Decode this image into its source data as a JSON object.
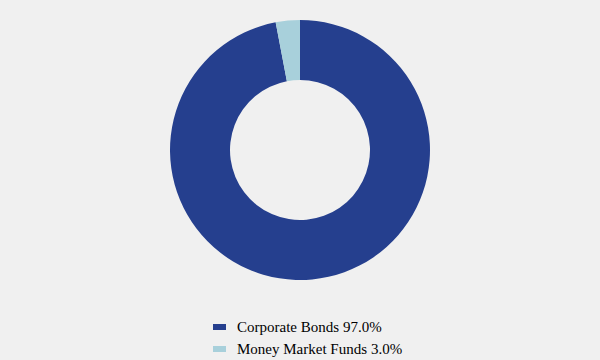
{
  "chart_data": {
    "type": "pie",
    "categories": [
      "Corporate Bonds",
      "Money Market Funds"
    ],
    "values": [
      97.0,
      3.0
    ],
    "value_labels": [
      "97.0%",
      "3.0%"
    ],
    "colors": [
      "#253f8e",
      "#a8d0db"
    ],
    "legend": "bottom"
  }
}
